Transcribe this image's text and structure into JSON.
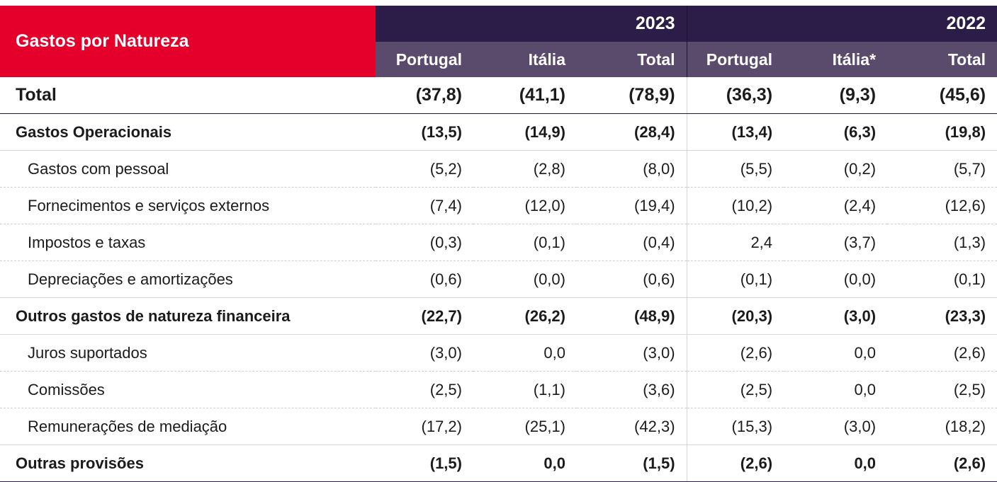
{
  "header": {
    "corner_label": "Gastos por Natureza",
    "years": [
      "2023",
      "2022"
    ],
    "columns": [
      "Portugal",
      "Itália",
      "Total",
      "Portugal",
      "Itália*",
      "Total"
    ]
  },
  "rows": [
    {
      "label": "Total",
      "values": [
        "(37,8)",
        "(41,1)",
        "(78,9)",
        "(36,3)",
        "(9,3)",
        "(45,6)"
      ]
    },
    {
      "label": "Gastos Operacionais",
      "values": [
        "(13,5)",
        "(14,9)",
        "(28,4)",
        "(13,4)",
        "(6,3)",
        "(19,8)"
      ]
    },
    {
      "label": "Gastos com pessoal",
      "values": [
        "(5,2)",
        "(2,8)",
        "(8,0)",
        "(5,5)",
        "(0,2)",
        "(5,7)"
      ]
    },
    {
      "label": "Fornecimentos e serviços externos",
      "values": [
        "(7,4)",
        "(12,0)",
        "(19,4)",
        "(10,2)",
        "(2,4)",
        "(12,6)"
      ]
    },
    {
      "label": "Impostos e taxas",
      "values": [
        "(0,3)",
        "(0,1)",
        "(0,4)",
        "2,4",
        "(3,7)",
        "(1,3)"
      ]
    },
    {
      "label": "Depreciações e amortizações",
      "values": [
        "(0,6)",
        "(0,0)",
        "(0,6)",
        "(0,1)",
        "(0,0)",
        "(0,1)"
      ]
    },
    {
      "label": "Outros gastos de natureza financeira",
      "values": [
        "(22,7)",
        "(26,2)",
        "(48,9)",
        "(20,3)",
        "(3,0)",
        "(23,3)"
      ]
    },
    {
      "label": "Juros suportados",
      "values": [
        "(3,0)",
        "0,0",
        "(3,0)",
        "(2,6)",
        "0,0",
        "(2,6)"
      ]
    },
    {
      "label": "Comissões",
      "values": [
        "(2,5)",
        "(1,1)",
        "(3,6)",
        "(2,5)",
        "0,0",
        "(2,5)"
      ]
    },
    {
      "label": "Remunerações de mediação",
      "values": [
        "(17,2)",
        "(25,1)",
        "(42,3)",
        "(15,3)",
        "(3,0)",
        "(18,2)"
      ]
    },
    {
      "label": "Outras provisões",
      "values": [
        "(1,5)",
        "0,0",
        "(1,5)",
        "(2,6)",
        "0,0",
        "(2,6)"
      ]
    }
  ],
  "colors": {
    "corner": "#e4002b",
    "year_band": "#2c1c48",
    "column_band": "#5a4a6c"
  }
}
